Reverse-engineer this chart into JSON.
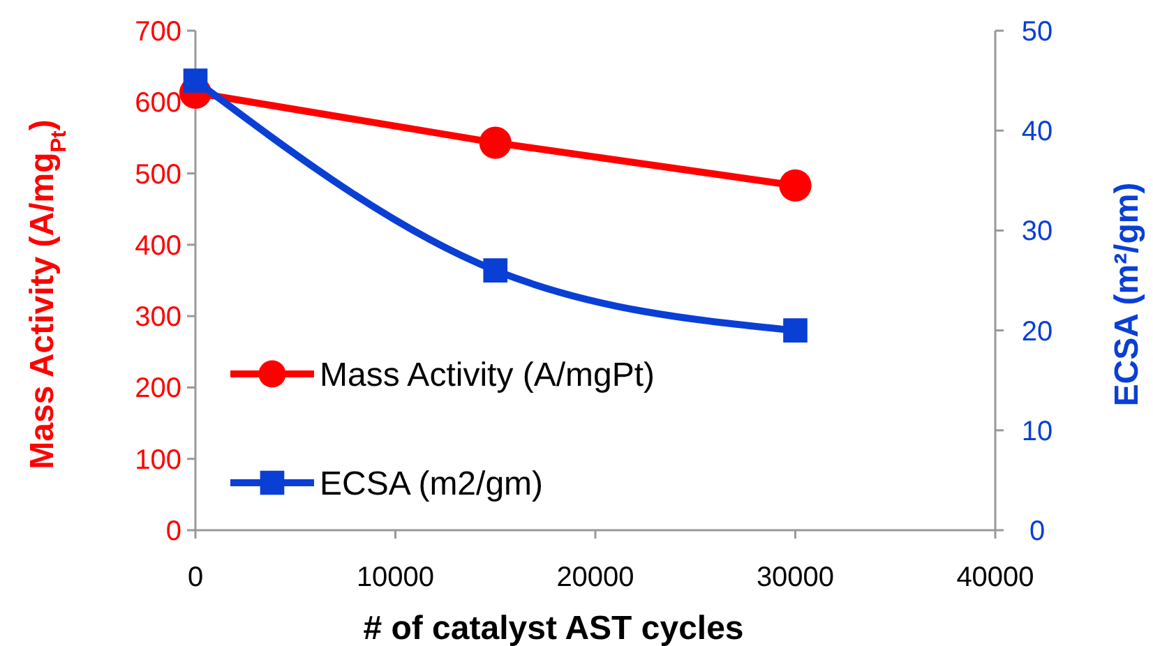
{
  "chart_data": {
    "type": "line",
    "xlabel": "# of catalyst AST cycles",
    "ylabel": "Mass Activity (A/mg$_{Pt}$)",
    "y2label": "ECSA (m²/gm)",
    "x": [
      0,
      15000,
      30000
    ],
    "series": [
      {
        "name": "Mass Activity (A/mgPt)",
        "color": "#ff0000",
        "values": [
          613,
          543,
          483
        ],
        "marker": "circle"
      },
      {
        "name": "ECSA (m2/gm)",
        "color": "#0a3fd6",
        "values": [
          45,
          26,
          20
        ],
        "axis": "y2",
        "marker": "square"
      }
    ],
    "xlim": [
      0,
      40000
    ],
    "xticks": [
      0,
      10000,
      20000,
      30000,
      40000
    ],
    "ylim": [
      0,
      700
    ],
    "yticks": [
      0,
      100,
      200,
      300,
      400,
      500,
      600,
      700
    ],
    "y2lim": [
      0,
      50
    ],
    "y2ticks": [
      0,
      10,
      20,
      30,
      40,
      50
    ],
    "legend": "bottom left",
    "grid": false
  }
}
